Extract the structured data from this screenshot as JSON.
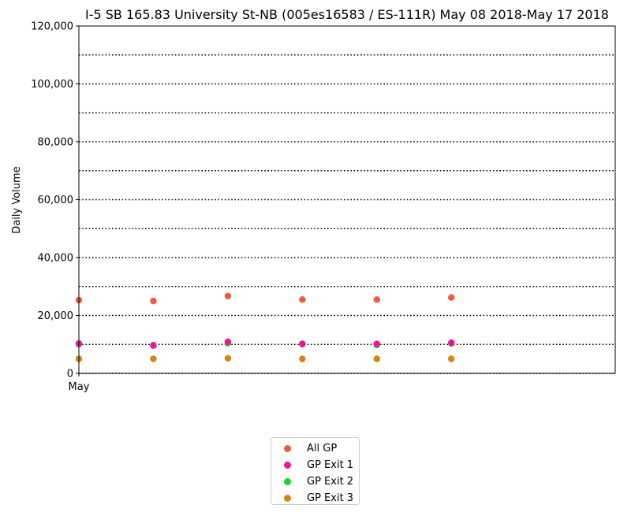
{
  "chart_data": {
    "type": "scatter",
    "title": "I-5  SB  165.83  University St-NB (005es16583 / ES-111R) May 08 2018-May 17 2018",
    "xlabel": "",
    "ylabel": "Daily Volume",
    "x_tick_labels": [
      "May"
    ],
    "ylim": [
      0,
      120000
    ],
    "y_ticks": [
      0,
      20000,
      40000,
      60000,
      80000,
      100000,
      120000
    ],
    "y_tick_labels": [
      "0",
      "20,000",
      "40,000",
      "60,000",
      "80,000",
      "100,000",
      "120,000"
    ],
    "grid": "horizontal dotted every 10,000",
    "x": [
      "2018-05-08",
      "2018-05-09",
      "2018-05-10",
      "2018-05-11",
      "2018-05-12",
      "2018-05-13"
    ],
    "xlim": [
      "2018-05-08",
      "2018-05-14"
    ],
    "legend_position": "below",
    "series": [
      {
        "name": "All GP",
        "color": "#f4593b",
        "values": [
          25300,
          25000,
          26700,
          25500,
          25500,
          26200
        ]
      },
      {
        "name": "GP Exit 1",
        "color": "#f5129a",
        "values": [
          10300,
          9600,
          10900,
          10200,
          10200,
          10600
        ]
      },
      {
        "name": "GP Exit 2",
        "color": "#22d322",
        "values": [
          10100,
          9800,
          10400,
          10100,
          9800,
          10300
        ]
      },
      {
        "name": "GP Exit 3",
        "color": "#d98412",
        "values": [
          5000,
          5000,
          5200,
          5000,
          5000,
          5000
        ]
      }
    ]
  }
}
